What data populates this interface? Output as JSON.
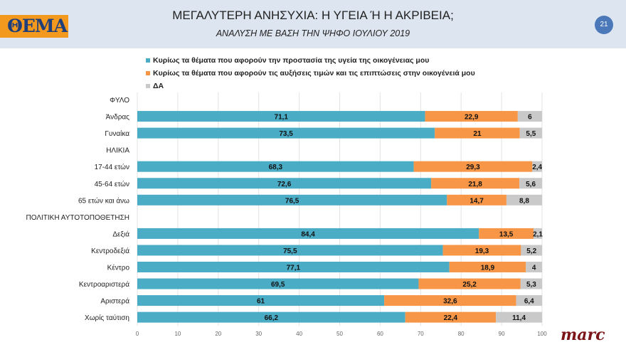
{
  "header": {
    "logo_text": "ΘΕΜΑ",
    "title": "ΜΕΓΑΛΥΤΕΡΗ ΑΝΗΣΥΧΙΑ: Η ΥΓΕΙΑ Ή Η ΑΚΡΙΒΕΙΑ;",
    "subtitle": "ΑΝΑΛΥΣΗ ΜΕ ΒΑΣΗ ΤΗΝ ΨΗΦΟ ΙΟΥΛΙΟΥ 2019",
    "page_number": "21"
  },
  "footer": {
    "brand": "marc"
  },
  "chart_data": {
    "type": "bar",
    "orientation": "horizontal",
    "stacked": true,
    "legend_position": "top",
    "grid": true,
    "xlim": [
      0,
      100
    ],
    "xticks": [
      "0",
      "10",
      "20",
      "30",
      "40",
      "50",
      "60",
      "70",
      "80",
      "90",
      "100"
    ],
    "categories": [
      "ΦΥΛΟ",
      "Άνδρας",
      "Γυναίκα",
      "ΗΛΙΚΙΑ",
      "17-44 ετών",
      "45-64 ετών",
      "65 ετών και άνω",
      "ΠΟΛΙΤΙΚΗ ΑΥΤΟΤΟΠΟΘΕΤΗΣΗ",
      "Δεξιά",
      "Κεντροδεξιά",
      "Κέντρο",
      "Κεντροαριστερά",
      "Αριστερά",
      "Χωρίς ταύτιση"
    ],
    "series": [
      {
        "name": "Κυρίως τα θέματα που αφορούν την προστασία της υγεία της οικογένειας μου",
        "color": "#4bacc6",
        "values": [
          null,
          71.1,
          73.5,
          null,
          68.3,
          72.6,
          76.5,
          null,
          84.4,
          75.5,
          77.1,
          69.5,
          61,
          66.2
        ]
      },
      {
        "name": "Κυρίως τα θέματα που αφορούν τις αυξήσεις τιμών και τις επιπτώσεις στην οικογένειά μου",
        "color": "#f79646",
        "values": [
          null,
          22.9,
          21,
          null,
          29.3,
          21.8,
          14.7,
          null,
          13.5,
          19.3,
          18.9,
          25.2,
          32.6,
          22.4
        ]
      },
      {
        "name": "ΔΑ",
        "color": "#c9c9c9",
        "values": [
          null,
          6,
          5.5,
          null,
          2.4,
          5.6,
          8.8,
          null,
          2.1,
          5.2,
          4,
          5.3,
          6.4,
          11.4
        ]
      }
    ]
  }
}
